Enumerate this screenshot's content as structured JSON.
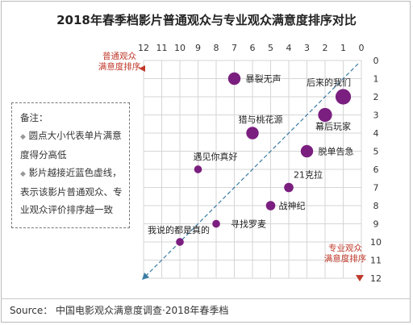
{
  "chart_data": {
    "type": "scatter",
    "title": "2018年春季档影片普通观众与专业观众满意度排序对比",
    "x_axis_label": "普通观众\n满意度排序",
    "y_axis_label": "专业观众\n满意度排序",
    "xlim": [
      12,
      0
    ],
    "ylim": [
      0,
      12
    ],
    "x_ticks": [
      "12",
      "11",
      "10",
      "9",
      "8",
      "7",
      "6",
      "5",
      "4",
      "3",
      "2",
      "1",
      "0"
    ],
    "y_ticks": [
      "0",
      "1",
      "2",
      "3",
      "4",
      "5",
      "6",
      "7",
      "8",
      "9",
      "10",
      "11",
      "12"
    ],
    "grid": true,
    "diagonal": true,
    "points": [
      {
        "name": "暴裂无声",
        "x": 7,
        "y": 1,
        "size": 3
      },
      {
        "name": "后来的我们",
        "x": 1,
        "y": 2,
        "size": 4
      },
      {
        "name": "幕后玩家",
        "x": 2,
        "y": 3,
        "size": 3.5
      },
      {
        "name": "猎与桃花源",
        "x": 6,
        "y": 4,
        "size": 3
      },
      {
        "name": "脱单告急",
        "x": 3,
        "y": 5,
        "size": 3
      },
      {
        "name": "遇见你真好",
        "x": 9,
        "y": 6,
        "size": 1.5
      },
      {
        "name": "21克拉",
        "x": 4,
        "y": 7,
        "size": 2
      },
      {
        "name": "战神纪",
        "x": 5,
        "y": 8,
        "size": 2
      },
      {
        "name": "寻找罗麦",
        "x": 8,
        "y": 9,
        "size": 1.5
      },
      {
        "name": "我说的都是真的",
        "x": 10,
        "y": 10,
        "size": 1.5
      }
    ],
    "point_color": "#7a1f7f",
    "axis_label_color": "#c0392b",
    "diagonal_color": "#3a7ca5"
  },
  "note": {
    "heading": "备注：",
    "items": [
      "圆点大小代表单片满意度得分高低",
      "影片越接近蓝色虚线，表示该影片普通观众、专业观众评价排序越一致"
    ]
  },
  "source": "Source：  中国电影观众满意度调查·2018年春季档"
}
